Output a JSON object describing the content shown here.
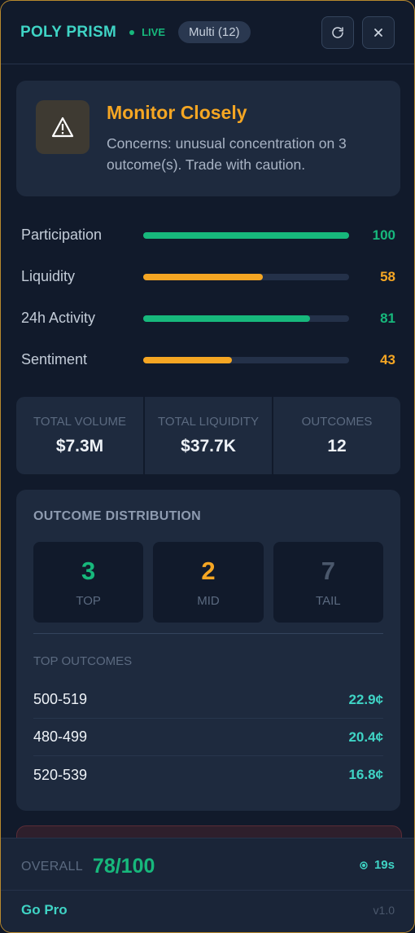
{
  "header": {
    "brand": "POLY PRISM",
    "live": "LIVE",
    "badge": "Multi (12)",
    "refresh_icon": "refresh-icon",
    "close_icon": "close-icon"
  },
  "alert": {
    "icon": "warning-icon",
    "title": "Monitor Closely",
    "message": "Concerns: unusual concentration on 3 outcome(s). Trade with caution."
  },
  "metrics": [
    {
      "label": "Participation",
      "value": 100,
      "display": "100",
      "color": "#17b87c"
    },
    {
      "label": "Liquidity",
      "value": 58,
      "display": "58",
      "color": "#f5a623"
    },
    {
      "label": "24h Activity",
      "value": 81,
      "display": "81",
      "color": "#17b87c"
    },
    {
      "label": "Sentiment",
      "value": 43,
      "display": "43",
      "color": "#f5a623"
    }
  ],
  "stats": [
    {
      "label": "TOTAL VOLUME",
      "value": "$7.3M"
    },
    {
      "label": "TOTAL LIQUIDITY",
      "value": "$37.7K"
    },
    {
      "label": "OUTCOMES",
      "value": "12"
    }
  ],
  "distribution": {
    "title": "OUTCOME DISTRIBUTION",
    "tiers": [
      {
        "count": "3",
        "label": "TOP",
        "color": "#17b87c"
      },
      {
        "count": "2",
        "label": "MID",
        "color": "#f5a623"
      },
      {
        "count": "7",
        "label": "TAIL",
        "color": "#4b586c"
      }
    ],
    "top_outcomes_label": "TOP OUTCOMES",
    "top_outcomes": [
      {
        "name": "500-519",
        "price": "22.9¢"
      },
      {
        "name": "480-499",
        "price": "20.4¢"
      },
      {
        "name": "520-539",
        "price": "16.8¢"
      }
    ]
  },
  "footer": {
    "overall_label": "OVERALL",
    "overall_value": "78/100",
    "timer": "19s",
    "go_pro": "Go Pro",
    "version": "v1.0"
  },
  "colors": {
    "accent": "#3fd4c5",
    "good": "#17b87c",
    "warn": "#f5a623"
  }
}
